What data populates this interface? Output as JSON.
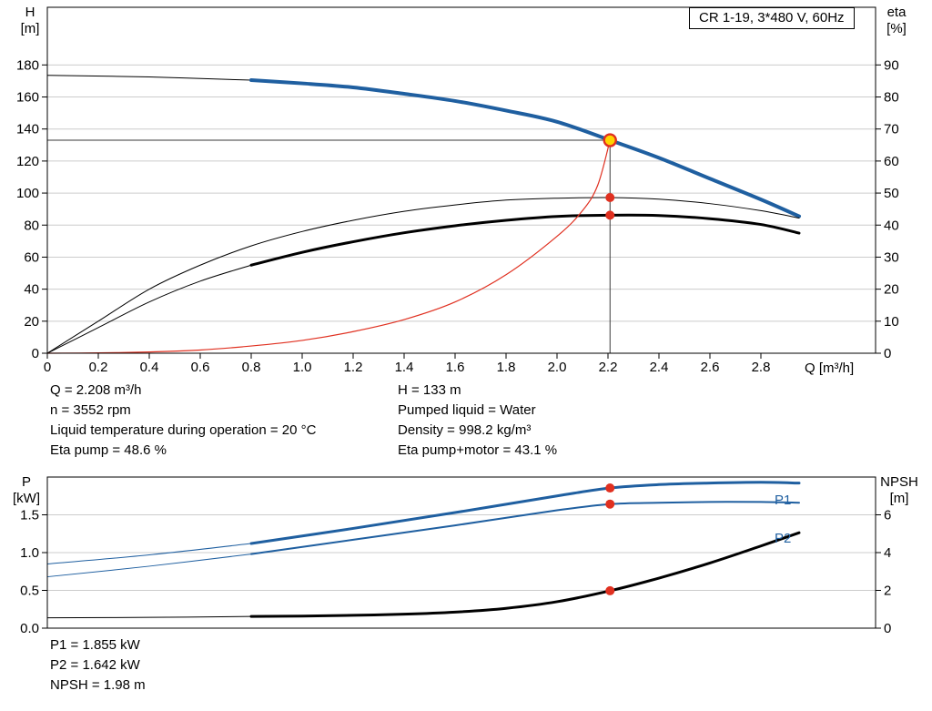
{
  "window": {
    "title_box": "CR 1-19, 3*480 V, 60Hz"
  },
  "colors": {
    "blue": "#1f5fa0",
    "red": "#e03020",
    "black": "#000000",
    "grid": "#cccccc",
    "ref_line": "#3a3a3a",
    "marker_fill": "#ffd400",
    "axis": "#000000"
  },
  "top_info": {
    "left": [
      "Q = 2.208 m³/h",
      "n = 3552 rpm",
      "Liquid temperature during operation = 20 °C",
      "Eta pump = 48.6 %"
    ],
    "right": [
      "H = 133 m",
      "Pumped liquid = Water",
      "Density = 998.2 kg/m³",
      "Eta pump+motor = 43.1 %"
    ]
  },
  "bottom_info": [
    "P1 = 1.855 kW",
    "P2 = 1.642 kW",
    "NPSH = 1.98 m"
  ],
  "chart_data": [
    {
      "id": "qh-eta-chart",
      "type": "line",
      "title": "CR 1-19, 3*480 V, 60Hz",
      "grid": "horizontal",
      "legend_position": "none",
      "x_axis": {
        "label": "Q [m³/h]",
        "min": 0,
        "max": 3.25,
        "ticks": [
          {
            "v": 0,
            "label": "0"
          },
          {
            "v": 0.2,
            "label": "0.2"
          },
          {
            "v": 0.4,
            "label": "0.4"
          },
          {
            "v": 0.6,
            "label": "0.6"
          },
          {
            "v": 0.8,
            "label": "0.8"
          },
          {
            "v": 1.0,
            "label": "1.0"
          },
          {
            "v": 1.2,
            "label": "1.2"
          },
          {
            "v": 1.4,
            "label": "1.4"
          },
          {
            "v": 1.6,
            "label": "1.6"
          },
          {
            "v": 1.8,
            "label": "1.8"
          },
          {
            "v": 2.0,
            "label": "2.0"
          },
          {
            "v": 2.2,
            "label": "2.2"
          },
          {
            "v": 2.4,
            "label": "2.4"
          },
          {
            "v": 2.6,
            "label": "2.6"
          },
          {
            "v": 2.8,
            "label": "2.8"
          }
        ]
      },
      "left_axis": {
        "title": [
          "H",
          "[m]"
        ],
        "min": 0,
        "max": 216,
        "ticks": [
          {
            "v": 0,
            "label": "0"
          },
          {
            "v": 20,
            "label": "20"
          },
          {
            "v": 40,
            "label": "40"
          },
          {
            "v": 60,
            "label": "60"
          },
          {
            "v": 80,
            "label": "80"
          },
          {
            "v": 100,
            "label": "100"
          },
          {
            "v": 120,
            "label": "120"
          },
          {
            "v": 140,
            "label": "140"
          },
          {
            "v": 160,
            "label": "160"
          },
          {
            "v": 180,
            "label": "180"
          }
        ]
      },
      "right_axis": {
        "title": [
          "eta",
          "[%]"
        ],
        "min": 0,
        "max": 108,
        "ticks": [
          {
            "v": 0,
            "label": "0"
          },
          {
            "v": 10,
            "label": "10"
          },
          {
            "v": 20,
            "label": "20"
          },
          {
            "v": 30,
            "label": "30"
          },
          {
            "v": 40,
            "label": "40"
          },
          {
            "v": 50,
            "label": "50"
          },
          {
            "v": 60,
            "label": "60"
          },
          {
            "v": 70,
            "label": "70"
          },
          {
            "v": 80,
            "label": "80"
          },
          {
            "v": 90,
            "label": "90"
          }
        ]
      },
      "series": [
        {
          "id": "qh-curve-low-flow",
          "name": "QH head curve (low flow)",
          "axis": "left",
          "color": "#000000",
          "width": 1,
          "points": [
            [
              0,
              173.5
            ],
            [
              0.4,
              172.5
            ],
            [
              0.8,
              170.5
            ]
          ]
        },
        {
          "id": "qh-curve",
          "name": "QH head curve",
          "axis": "left",
          "color": "#1f5fa0",
          "width": 4,
          "points": [
            [
              0.8,
              170.5
            ],
            [
              1,
              168.5
            ],
            [
              1.2,
              166
            ],
            [
              1.4,
              162
            ],
            [
              1.6,
              157.5
            ],
            [
              1.8,
              151.5
            ],
            [
              2,
              144.5
            ],
            [
              2.208,
              133
            ],
            [
              2.4,
              122
            ],
            [
              2.6,
              109
            ],
            [
              2.8,
              96
            ],
            [
              2.95,
              85.5
            ]
          ]
        },
        {
          "id": "eta-pump-curve",
          "name": "Eta pump",
          "axis": "right",
          "color": "#000000",
          "width": 1,
          "points": [
            [
              0,
              0
            ],
            [
              0.2,
              10
            ],
            [
              0.4,
              20
            ],
            [
              0.6,
              27.5
            ],
            [
              0.8,
              33.5
            ],
            [
              1,
              38
            ],
            [
              1.2,
              41.5
            ],
            [
              1.4,
              44.3
            ],
            [
              1.6,
              46.3
            ],
            [
              1.8,
              47.8
            ],
            [
              2,
              48.4
            ],
            [
              2.208,
              48.6
            ],
            [
              2.4,
              48.1
            ],
            [
              2.6,
              46.7
            ],
            [
              2.8,
              44.5
            ],
            [
              2.95,
              42.2
            ]
          ]
        },
        {
          "id": "eta-pump-motor-curve-low-flow",
          "name": "Eta pump+motor (low flow)",
          "axis": "right",
          "color": "#000000",
          "width": 1,
          "points": [
            [
              0,
              0
            ],
            [
              0.2,
              8
            ],
            [
              0.4,
              16
            ],
            [
              0.6,
              22.5
            ],
            [
              0.8,
              27.5
            ]
          ]
        },
        {
          "id": "eta-pump-motor-curve",
          "name": "Eta pump+motor",
          "axis": "right",
          "color": "#000000",
          "width": 3,
          "points": [
            [
              0.8,
              27.5
            ],
            [
              1,
              31.5
            ],
            [
              1.2,
              34.8
            ],
            [
              1.4,
              37.6
            ],
            [
              1.6,
              39.8
            ],
            [
              1.8,
              41.5
            ],
            [
              2,
              42.7
            ],
            [
              2.208,
              43.1
            ],
            [
              2.4,
              43
            ],
            [
              2.6,
              42
            ],
            [
              2.8,
              40.2
            ],
            [
              2.95,
              37.5
            ]
          ]
        },
        {
          "id": "duty-point-curve",
          "name": "Duty point curve",
          "axis": "left",
          "color": "#e03020",
          "width": 1.2,
          "points": [
            [
              0,
              0
            ],
            [
              0.2,
              0.2
            ],
            [
              0.4,
              0.8
            ],
            [
              0.6,
              2
            ],
            [
              0.8,
              4.5
            ],
            [
              1,
              8
            ],
            [
              1.2,
              13.5
            ],
            [
              1.4,
              21
            ],
            [
              1.6,
              32
            ],
            [
              1.8,
              49
            ],
            [
              2,
              73
            ],
            [
              2.1,
              89
            ],
            [
              2.16,
              105
            ],
            [
              2.208,
              133
            ]
          ]
        }
      ],
      "reference_lines": [
        {
          "orientation": "horizontal",
          "axis": "left",
          "value": 133,
          "x_from": 0,
          "x_to": 2.208
        },
        {
          "orientation": "vertical",
          "axis": "left",
          "x": 2.208,
          "v_from": 0,
          "v_to": 133
        }
      ],
      "markers": [
        {
          "id": "eta-pump-operating-dot",
          "q": 2.208,
          "value": 48.6,
          "axis": "right",
          "r": 5,
          "fill": "#e03020"
        },
        {
          "id": "eta-pump-motor-operating-dot",
          "q": 2.208,
          "value": 43.1,
          "axis": "right",
          "r": 5,
          "fill": "#e03020"
        },
        {
          "id": "duty-point",
          "q": 2.208,
          "value": 133,
          "axis": "left",
          "r": 6.5,
          "fill": "#ffd400",
          "stroke": "#e03020"
        }
      ]
    },
    {
      "id": "power-npsh-chart",
      "type": "line",
      "title": "",
      "grid": "horizontal",
      "legend_position": "inline-right",
      "x_axis": {
        "label": "",
        "min": 0,
        "max": 3.25,
        "ticks": []
      },
      "left_axis": {
        "title": [
          "P",
          "[kW]"
        ],
        "min": 0,
        "max": 2.0,
        "ticks": [
          {
            "v": 0,
            "label": "0.0"
          },
          {
            "v": 0.5,
            "label": "0.5"
          },
          {
            "v": 1.0,
            "label": "1.0"
          },
          {
            "v": 1.5,
            "label": "1.5"
          }
        ]
      },
      "right_axis": {
        "title": [
          "NPSH",
          "[m]"
        ],
        "min": 0,
        "max": 8,
        "ticks": [
          {
            "v": 0,
            "label": "0"
          },
          {
            "v": 2,
            "label": "2"
          },
          {
            "v": 4,
            "label": "4"
          },
          {
            "v": 6,
            "label": "6"
          }
        ]
      },
      "series": [
        {
          "id": "p1-power-curve-low-flow",
          "name": "P1 power (low flow)",
          "axis": "left",
          "color": "#1f5fa0",
          "width": 1,
          "points": [
            [
              0,
              0.85
            ],
            [
              0.4,
              0.97
            ],
            [
              0.8,
              1.12
            ]
          ]
        },
        {
          "id": "p1-power-curve",
          "name": "P1 power",
          "axis": "left",
          "color": "#1f5fa0",
          "width": 3,
          "points": [
            [
              0.8,
              1.12
            ],
            [
              1.2,
              1.32
            ],
            [
              1.6,
              1.53
            ],
            [
              2,
              1.75
            ],
            [
              2.208,
              1.855
            ],
            [
              2.4,
              1.9
            ],
            [
              2.6,
              1.92
            ],
            [
              2.8,
              1.93
            ],
            [
              2.95,
              1.92
            ]
          ]
        },
        {
          "id": "p2-power-curve-low-flow",
          "name": "P2 power (low flow)",
          "axis": "left",
          "color": "#1f5fa0",
          "width": 1,
          "points": [
            [
              0,
              0.68
            ],
            [
              0.4,
              0.82
            ],
            [
              0.8,
              0.98
            ]
          ]
        },
        {
          "id": "p2-power-curve",
          "name": "P2 power",
          "axis": "left",
          "color": "#1f5fa0",
          "width": 2,
          "points": [
            [
              0.8,
              0.98
            ],
            [
              1.2,
              1.17
            ],
            [
              1.6,
              1.36
            ],
            [
              2,
              1.56
            ],
            [
              2.208,
              1.642
            ],
            [
              2.4,
              1.66
            ],
            [
              2.6,
              1.67
            ],
            [
              2.8,
              1.67
            ],
            [
              2.95,
              1.66
            ]
          ]
        },
        {
          "id": "npsh-curve-low-flow",
          "name": "NPSH (low flow)",
          "axis": "right",
          "color": "#000000",
          "width": 1,
          "points": [
            [
              0,
              0.55
            ],
            [
              0.4,
              0.57
            ],
            [
              0.8,
              0.62
            ]
          ]
        },
        {
          "id": "npsh-curve",
          "name": "NPSH",
          "axis": "right",
          "color": "#000000",
          "width": 3,
          "points": [
            [
              0.8,
              0.62
            ],
            [
              1,
              0.64
            ],
            [
              1.2,
              0.68
            ],
            [
              1.4,
              0.74
            ],
            [
              1.6,
              0.85
            ],
            [
              1.8,
              1.05
            ],
            [
              2,
              1.4
            ],
            [
              2.208,
              1.98
            ],
            [
              2.4,
              2.65
            ],
            [
              2.6,
              3.45
            ],
            [
              2.8,
              4.35
            ],
            [
              2.95,
              5.05
            ]
          ]
        }
      ],
      "reference_lines": [],
      "markers": [
        {
          "id": "p1-operating-dot",
          "q": 2.208,
          "value": 1.855,
          "axis": "left",
          "r": 5,
          "fill": "#e03020"
        },
        {
          "id": "p2-operating-dot",
          "q": 2.208,
          "value": 1.642,
          "axis": "left",
          "r": 5,
          "fill": "#e03020"
        },
        {
          "id": "npsh-operating-dot",
          "q": 2.208,
          "value": 1.98,
          "axis": "right",
          "r": 5,
          "fill": "#e03020"
        }
      ],
      "curve_labels": [
        {
          "text": "P1"
        },
        {
          "text": "P2"
        }
      ]
    }
  ]
}
